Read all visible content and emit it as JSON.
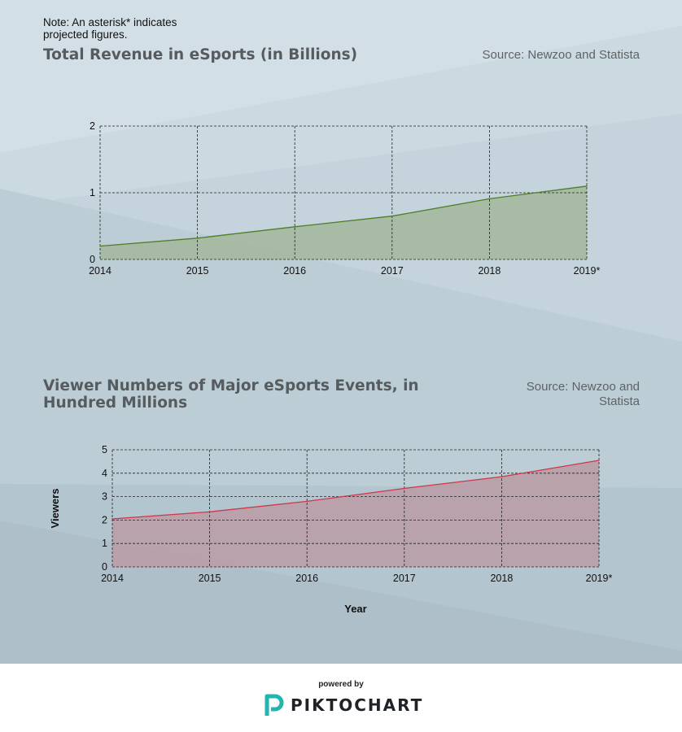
{
  "note": "Note: An asterisk* indicates projected figures.",
  "colors": {
    "revenue_line": "#4f7d28",
    "revenue_fill": "#a3b89f",
    "viewers_line": "#d0364a",
    "viewers_fill": "#b99da6",
    "panel_bg": "#b9cad4",
    "brand_accent": "#1fb6b0"
  },
  "chart_data": [
    {
      "type": "area",
      "title": "Total Revenue in eSports (in Billions)",
      "source": "Source:  Newzoo and Statista",
      "categories": [
        "2014",
        "2015",
        "2016",
        "2017",
        "2018",
        "2019*"
      ],
      "values": [
        0.2,
        0.32,
        0.49,
        0.65,
        0.91,
        1.1
      ],
      "ylim": [
        0,
        2
      ],
      "yticks": [
        "0",
        "1",
        "2"
      ],
      "xlabel": "",
      "ylabel": "",
      "grid": true
    },
    {
      "type": "area",
      "title": "Viewer Numbers of Major eSports Events, in Hundred Millions",
      "source": "Source: Newzoo and Statista",
      "categories": [
        "2014",
        "2015",
        "2016",
        "2017",
        "2018",
        "2019*"
      ],
      "values": [
        2.05,
        2.35,
        2.8,
        3.35,
        3.85,
        4.55
      ],
      "ylim": [
        0,
        5
      ],
      "yticks": [
        "0",
        "1",
        "2",
        "3",
        "4",
        "5"
      ],
      "xlabel": "Year",
      "ylabel": "Viewers",
      "grid": true
    }
  ],
  "footer": {
    "powered_by": "powered by",
    "brand": "PIKTOCHART",
    "logo_icon": "piktochart-p-icon"
  }
}
